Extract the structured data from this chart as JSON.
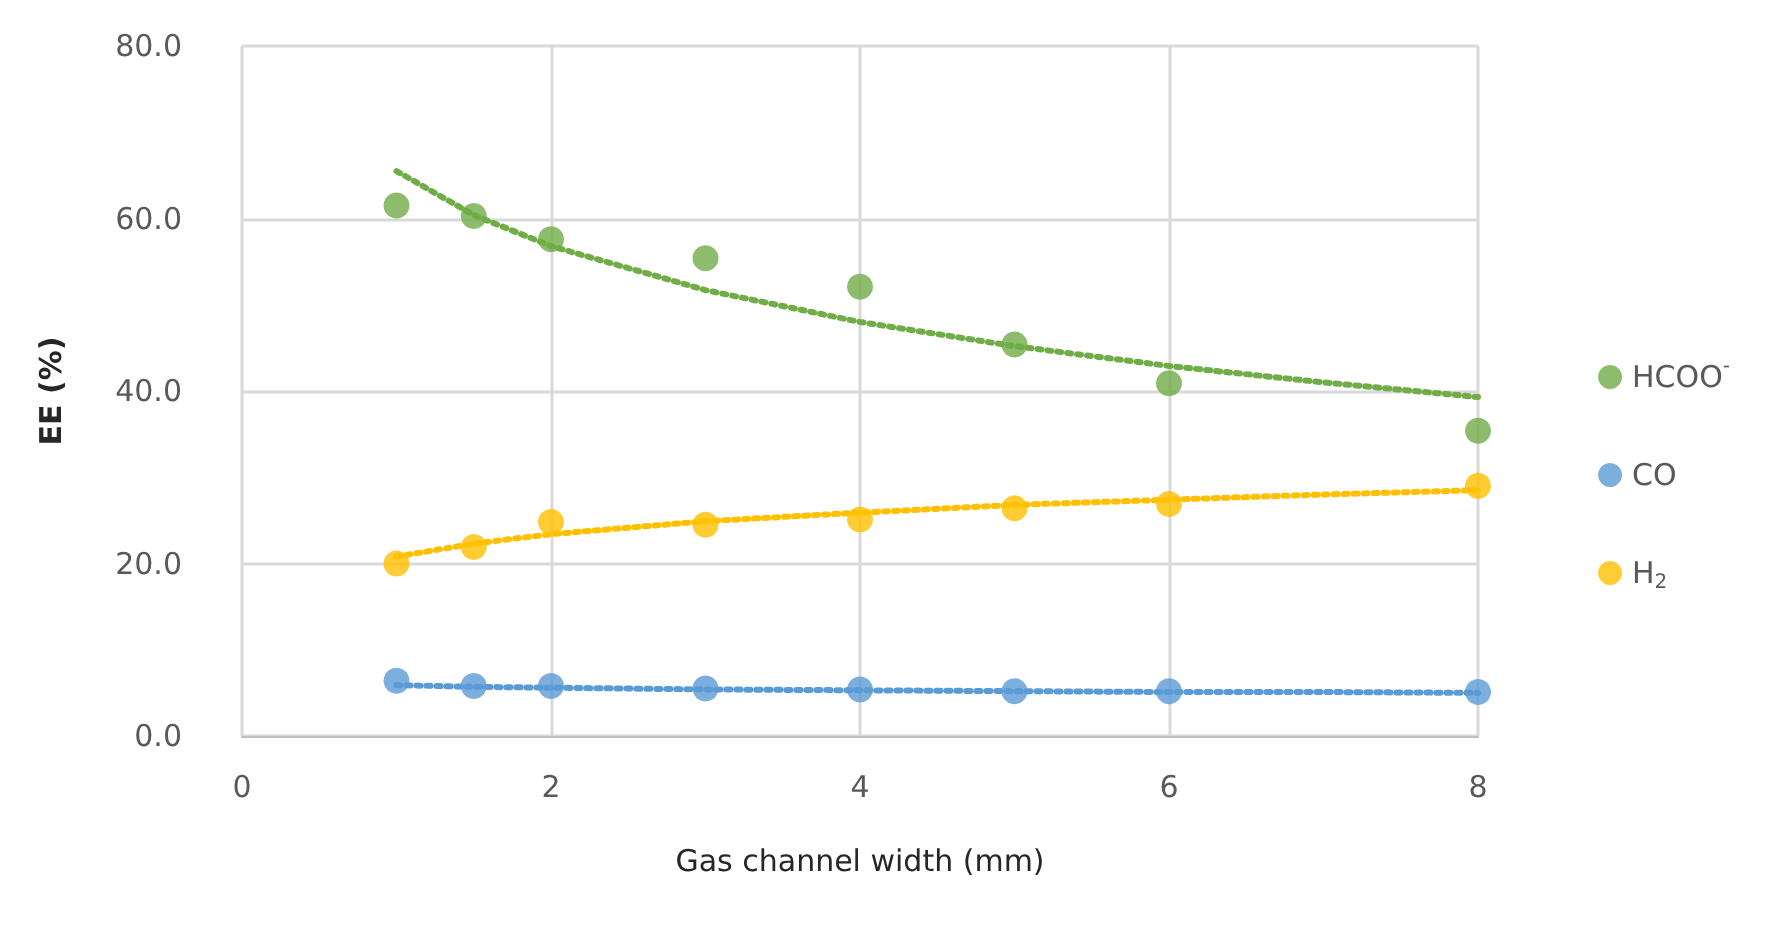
{
  "chart_data": {
    "type": "scatter",
    "xlabel": "Gas channel width (mm)",
    "ylabel": "EE (%)",
    "xlim": [
      0,
      8
    ],
    "xticks": [
      0,
      2,
      4,
      6,
      8
    ],
    "ylim": [
      0,
      80
    ],
    "yticks": [
      {
        "value": 0,
        "label": "0.0"
      },
      {
        "value": 20,
        "label": "20.0"
      },
      {
        "value": 40,
        "label": "40.0"
      },
      {
        "value": 60,
        "label": "60.0"
      },
      {
        "value": 80,
        "label": "80.0"
      }
    ],
    "grid": true,
    "legend": "right",
    "marker": "circle",
    "series": [
      {
        "name": "HCOO$^{-}$",
        "color": "#70ad47",
        "x": [
          1,
          1.5,
          2,
          3,
          4,
          5,
          6,
          8
        ],
        "values": [
          61.5,
          60.3,
          57.6,
          55.4,
          52.1,
          45.4,
          40.9,
          35.4
        ]
      },
      {
        "name": "CO",
        "color": "#5b9bd5",
        "x": [
          1,
          1.5,
          2,
          3,
          4,
          5,
          6,
          8
        ],
        "values": [
          6.4,
          5.8,
          5.8,
          5.5,
          5.4,
          5.2,
          5.2,
          5.1
        ]
      },
      {
        "name": "H$_{2}$",
        "color": "#ffc000",
        "x": [
          1,
          1.5,
          2,
          3,
          4,
          5,
          6,
          8
        ],
        "values": [
          20.0,
          21.9,
          24.8,
          24.5,
          25.1,
          26.4,
          26.9,
          29.0
        ]
      },
      {
        "type": "line",
        "color": "#70ad47",
        "line_style": "dotted",
        "marker": "none",
        "x": [
          1,
          1.5,
          2,
          3,
          4,
          5,
          6,
          7,
          8
        ],
        "values": [
          65.5,
          60.4,
          56.8,
          51.7,
          48.0,
          45.2,
          42.9,
          41.0,
          39.3
        ]
      },
      {
        "type": "line",
        "color": "#5b9bd5",
        "line_style": "dotted",
        "marker": "none",
        "x": [
          1,
          1.5,
          2,
          3,
          4,
          5,
          6,
          7,
          8
        ],
        "values": [
          5.9,
          5.7,
          5.6,
          5.4,
          5.3,
          5.2,
          5.1,
          5.1,
          5.0
        ]
      },
      {
        "type": "line",
        "color": "#ffc000",
        "line_style": "dotted",
        "marker": "none",
        "x": [
          1,
          1.5,
          2,
          3,
          4,
          5,
          6,
          7,
          8
        ],
        "values": [
          20.8,
          22.3,
          23.4,
          24.9,
          25.9,
          26.8,
          27.4,
          28.0,
          28.5
        ]
      }
    ]
  }
}
